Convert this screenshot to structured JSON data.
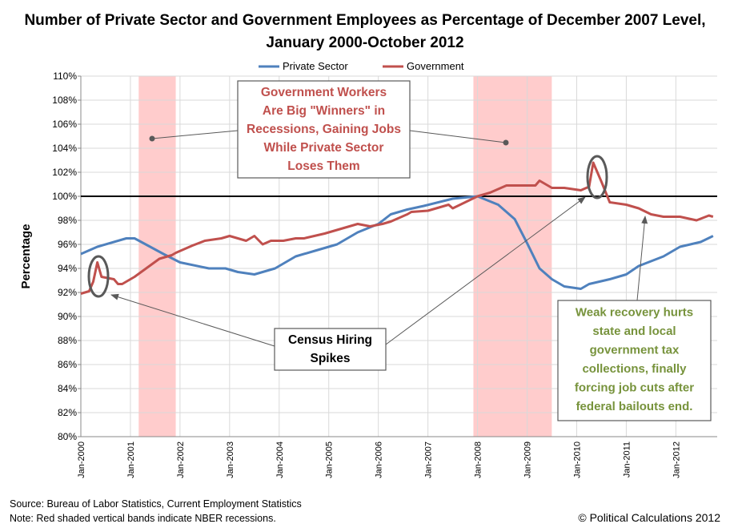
{
  "chart_data": {
    "type": "line",
    "title": "Number of Private Sector and Government Employees as Percentage of December 2007 Level, January 2000-October 2012",
    "ylabel": "Percentage",
    "xlabel": "",
    "ylim": [
      80,
      110
    ],
    "ytick_labels": [
      "80%",
      "82%",
      "84%",
      "86%",
      "88%",
      "90%",
      "92%",
      "94%",
      "96%",
      "98%",
      "100%",
      "102%",
      "104%",
      "106%",
      "108%",
      "110%"
    ],
    "xtick_labels": [
      "Jan-2000",
      "Jan-2001",
      "Jan-2002",
      "Jan-2003",
      "Jan-2004",
      "Jan-2005",
      "Jan-2006",
      "Jan-2007",
      "Jan-2008",
      "Jan-2009",
      "Jan-2010",
      "Jan-2011",
      "Jan-2012"
    ],
    "xlim": [
      "2000-01",
      "2012-10"
    ],
    "grid": true,
    "legend": "top",
    "reference_line": 100,
    "recessions": [
      [
        "2001-03",
        "2001-11"
      ],
      [
        "2007-12",
        "2009-06"
      ]
    ],
    "series": [
      {
        "name": "Private Sector",
        "color": "#4F81BD",
        "points": [
          [
            "2000-01",
            95.2
          ],
          [
            "2000-05",
            95.8
          ],
          [
            "2000-12",
            96.5
          ],
          [
            "2001-02",
            96.5
          ],
          [
            "2001-09",
            95.2
          ],
          [
            "2002-01",
            94.5
          ],
          [
            "2002-08",
            94.0
          ],
          [
            "2002-12",
            94.0
          ],
          [
            "2003-03",
            93.7
          ],
          [
            "2003-07",
            93.5
          ],
          [
            "2003-12",
            94.0
          ],
          [
            "2004-05",
            95.0
          ],
          [
            "2004-10",
            95.5
          ],
          [
            "2005-03",
            96.0
          ],
          [
            "2005-08",
            97.0
          ],
          [
            "2006-01",
            97.7
          ],
          [
            "2006-04",
            98.5
          ],
          [
            "2006-08",
            98.9
          ],
          [
            "2006-12",
            99.2
          ],
          [
            "2007-07",
            99.8
          ],
          [
            "2008-01",
            100.0
          ],
          [
            "2008-06",
            99.3
          ],
          [
            "2008-10",
            98.1
          ],
          [
            "2009-01",
            96.1
          ],
          [
            "2009-04",
            94.0
          ],
          [
            "2009-07",
            93.1
          ],
          [
            "2009-10",
            92.5
          ],
          [
            "2010-02",
            92.3
          ],
          [
            "2010-04",
            92.7
          ],
          [
            "2010-09",
            93.1
          ],
          [
            "2011-01",
            93.5
          ],
          [
            "2011-04",
            94.2
          ],
          [
            "2011-10",
            95.0
          ],
          [
            "2012-02",
            95.8
          ],
          [
            "2012-07",
            96.2
          ],
          [
            "2012-10",
            96.7
          ]
        ]
      },
      {
        "name": "Government",
        "color": "#C0504D",
        "points": [
          [
            "2000-01",
            91.9
          ],
          [
            "2000-03",
            92.1
          ],
          [
            "2000-04",
            92.9
          ],
          [
            "2000-05",
            94.5
          ],
          [
            "2000-06",
            93.3
          ],
          [
            "2000-09",
            93.1
          ],
          [
            "2000-10",
            92.7
          ],
          [
            "2000-11",
            92.7
          ],
          [
            "2001-02",
            93.3
          ],
          [
            "2001-06",
            94.3
          ],
          [
            "2001-08",
            94.8
          ],
          [
            "2001-11",
            95.1
          ],
          [
            "2001-12",
            95.3
          ],
          [
            "2002-04",
            95.9
          ],
          [
            "2002-07",
            96.3
          ],
          [
            "2002-11",
            96.5
          ],
          [
            "2003-01",
            96.7
          ],
          [
            "2003-05",
            96.3
          ],
          [
            "2003-07",
            96.7
          ],
          [
            "2003-09",
            96.0
          ],
          [
            "2003-11",
            96.3
          ],
          [
            "2004-02",
            96.3
          ],
          [
            "2004-05",
            96.5
          ],
          [
            "2004-07",
            96.5
          ],
          [
            "2004-12",
            96.9
          ],
          [
            "2005-03",
            97.2
          ],
          [
            "2005-08",
            97.7
          ],
          [
            "2005-11",
            97.5
          ],
          [
            "2006-02",
            97.7
          ],
          [
            "2006-04",
            97.9
          ],
          [
            "2006-08",
            98.5
          ],
          [
            "2006-09",
            98.7
          ],
          [
            "2007-01",
            98.8
          ],
          [
            "2007-06",
            99.3
          ],
          [
            "2007-07",
            99.0
          ],
          [
            "2008-01",
            100.0
          ],
          [
            "2008-04",
            100.3
          ],
          [
            "2008-08",
            100.9
          ],
          [
            "2009-03",
            100.9
          ],
          [
            "2009-04",
            101.3
          ],
          [
            "2009-07",
            100.7
          ],
          [
            "2009-10",
            100.7
          ],
          [
            "2010-02",
            100.5
          ],
          [
            "2010-04",
            100.8
          ],
          [
            "2010-05",
            102.8
          ],
          [
            "2010-07",
            101.2
          ],
          [
            "2010-09",
            99.5
          ],
          [
            "2011-01",
            99.3
          ],
          [
            "2011-04",
            99.0
          ],
          [
            "2011-07",
            98.5
          ],
          [
            "2011-10",
            98.3
          ],
          [
            "2012-02",
            98.3
          ],
          [
            "2012-06",
            98.0
          ],
          [
            "2012-09",
            98.4
          ],
          [
            "2012-10",
            98.3
          ]
        ]
      }
    ],
    "annotations": {
      "government": [
        "Government Workers",
        "Are Big \"Winners\" in",
        "Recessions, Gaining Jobs",
        "While Private Sector",
        "Loses Them"
      ],
      "census": [
        "Census Hiring",
        "Spikes"
      ],
      "recovery": [
        "Weak recovery hurts",
        "state and local",
        "government tax",
        "collections, finally",
        "forcing job cuts after",
        "federal bailouts end."
      ]
    }
  },
  "footer": {
    "source": "Source: Bureau of Labor Statistics, Current Employment Statistics",
    "note": "Note: Red shaded vertical bands indicate NBER recessions.",
    "copyright": "© Political Calculations 2012"
  }
}
